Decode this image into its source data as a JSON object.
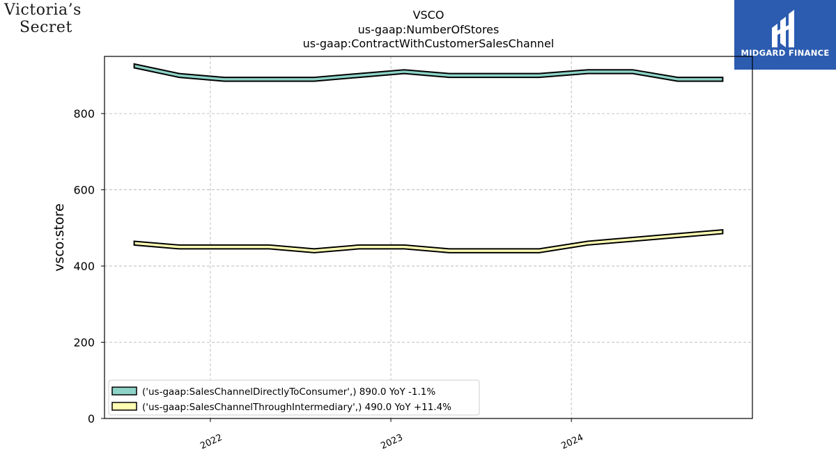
{
  "logos": {
    "left_line1": "Victoria’s",
    "left_line2": "Secret",
    "right_text": "MIDGARD FINANCE"
  },
  "chart_data": {
    "type": "area",
    "title": "VSCO",
    "subtitle_1": "us-gaap:NumberOfStores",
    "subtitle_2": "us-gaap:ContractWithCustomerSalesChannel",
    "xlabel": "",
    "ylabel": "vsco:store",
    "ylim": [
      0,
      950
    ],
    "yticks": [
      0,
      200,
      400,
      600,
      800
    ],
    "xticks": [
      {
        "label": "2022",
        "date": "2022-01-01"
      },
      {
        "label": "2023",
        "date": "2023-01-01"
      },
      {
        "label": "2024",
        "date": "2024-01-01"
      }
    ],
    "xlim": [
      "2021-06-01",
      "2025-01-01"
    ],
    "grid": true,
    "legend_position": "lower-left",
    "band_width": 10,
    "x": [
      "2021-07-31",
      "2021-10-30",
      "2022-01-29",
      "2022-04-30",
      "2022-07-30",
      "2022-10-29",
      "2023-01-28",
      "2023-04-29",
      "2023-07-29",
      "2023-10-28",
      "2024-02-03",
      "2024-05-04",
      "2024-08-03",
      "2024-11-02"
    ],
    "series": [
      {
        "name": "('us-gaap:SalesChannelDirectlyToConsumer',) 890.0 YoY -1.1%",
        "color": "#8dd3c7",
        "values": [
          925,
          900,
          890,
          890,
          890,
          900,
          910,
          900,
          900,
          900,
          910,
          910,
          890,
          890
        ]
      },
      {
        "name": "('us-gaap:SalesChannelThroughIntermediary',) 490.0 YoY +11.4%",
        "color": "#ffffb3",
        "values": [
          460,
          450,
          450,
          450,
          440,
          450,
          450,
          440,
          440,
          440,
          460,
          470,
          480,
          490
        ]
      }
    ]
  }
}
